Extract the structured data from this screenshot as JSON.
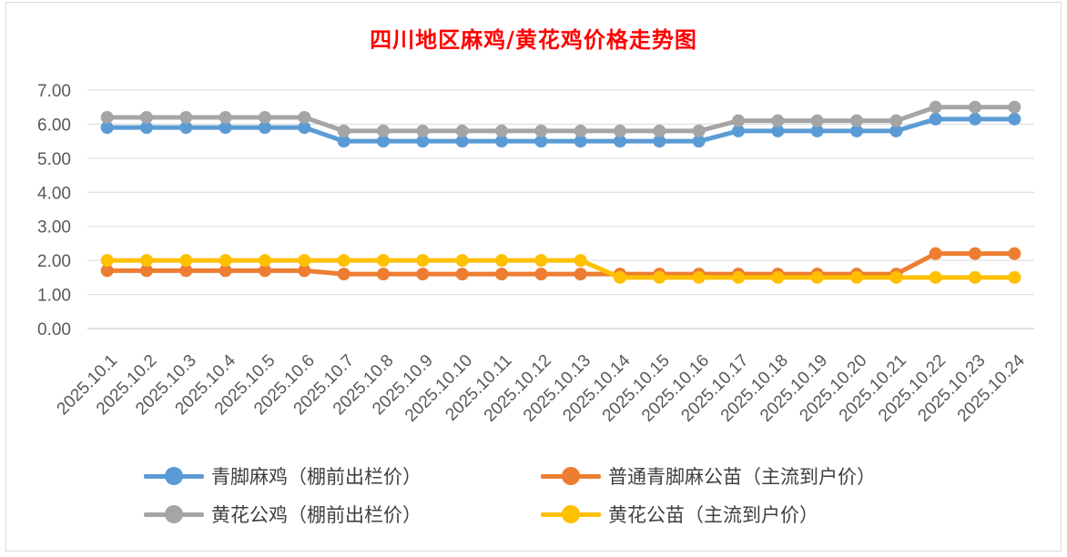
{
  "chart_data": {
    "type": "line",
    "title": "四川地区麻鸡/黄花鸡价格走势图",
    "categories": [
      "2025.10.1",
      "2025.10.2",
      "2025.10.3",
      "2025.10.4",
      "2025.10.5",
      "2025.10.6",
      "2025.10.7",
      "2025.10.8",
      "2025.10.9",
      "2025.10.10",
      "2025.10.11",
      "2025.10.12",
      "2025.10.13",
      "2025.10.14",
      "2025.10.15",
      "2025.10.16",
      "2025.10.17",
      "2025.10.18",
      "2025.10.19",
      "2025.10.20",
      "2025.10.21",
      "2025.10.22",
      "2025.10.23",
      "2025.10.24"
    ],
    "ylim": [
      0,
      7
    ],
    "yticks": [
      "0.00",
      "1.00",
      "2.00",
      "3.00",
      "4.00",
      "5.00",
      "6.00",
      "7.00"
    ],
    "grid": true,
    "legend_position": "bottom",
    "series": [
      {
        "name": "青脚麻鸡（棚前出栏价）",
        "color": "#5b9bd5",
        "values": [
          5.9,
          5.9,
          5.9,
          5.9,
          5.9,
          5.9,
          5.5,
          5.5,
          5.5,
          5.5,
          5.5,
          5.5,
          5.5,
          5.5,
          5.5,
          5.5,
          5.8,
          5.8,
          5.8,
          5.8,
          5.8,
          6.15,
          6.15,
          6.15
        ]
      },
      {
        "name": "普通青脚麻公苗（主流到户价）",
        "color": "#ed7d31",
        "values": [
          1.7,
          1.7,
          1.7,
          1.7,
          1.7,
          1.7,
          1.6,
          1.6,
          1.6,
          1.6,
          1.6,
          1.6,
          1.6,
          1.6,
          1.6,
          1.6,
          1.6,
          1.6,
          1.6,
          1.6,
          1.6,
          2.2,
          2.2,
          2.2
        ]
      },
      {
        "name": "黄花公鸡（棚前出栏价）",
        "color": "#a5a5a5",
        "values": [
          6.2,
          6.2,
          6.2,
          6.2,
          6.2,
          6.2,
          5.8,
          5.8,
          5.8,
          5.8,
          5.8,
          5.8,
          5.8,
          5.8,
          5.8,
          5.8,
          6.1,
          6.1,
          6.1,
          6.1,
          6.1,
          6.5,
          6.5,
          6.5
        ]
      },
      {
        "name": "黄花公苗（主流到户价）",
        "color": "#ffc000",
        "values": [
          2.0,
          2.0,
          2.0,
          2.0,
          2.0,
          2.0,
          2.0,
          2.0,
          2.0,
          2.0,
          2.0,
          2.0,
          2.0,
          1.5,
          1.5,
          1.5,
          1.5,
          1.5,
          1.5,
          1.5,
          1.5,
          1.5,
          1.5,
          1.5
        ]
      }
    ]
  }
}
